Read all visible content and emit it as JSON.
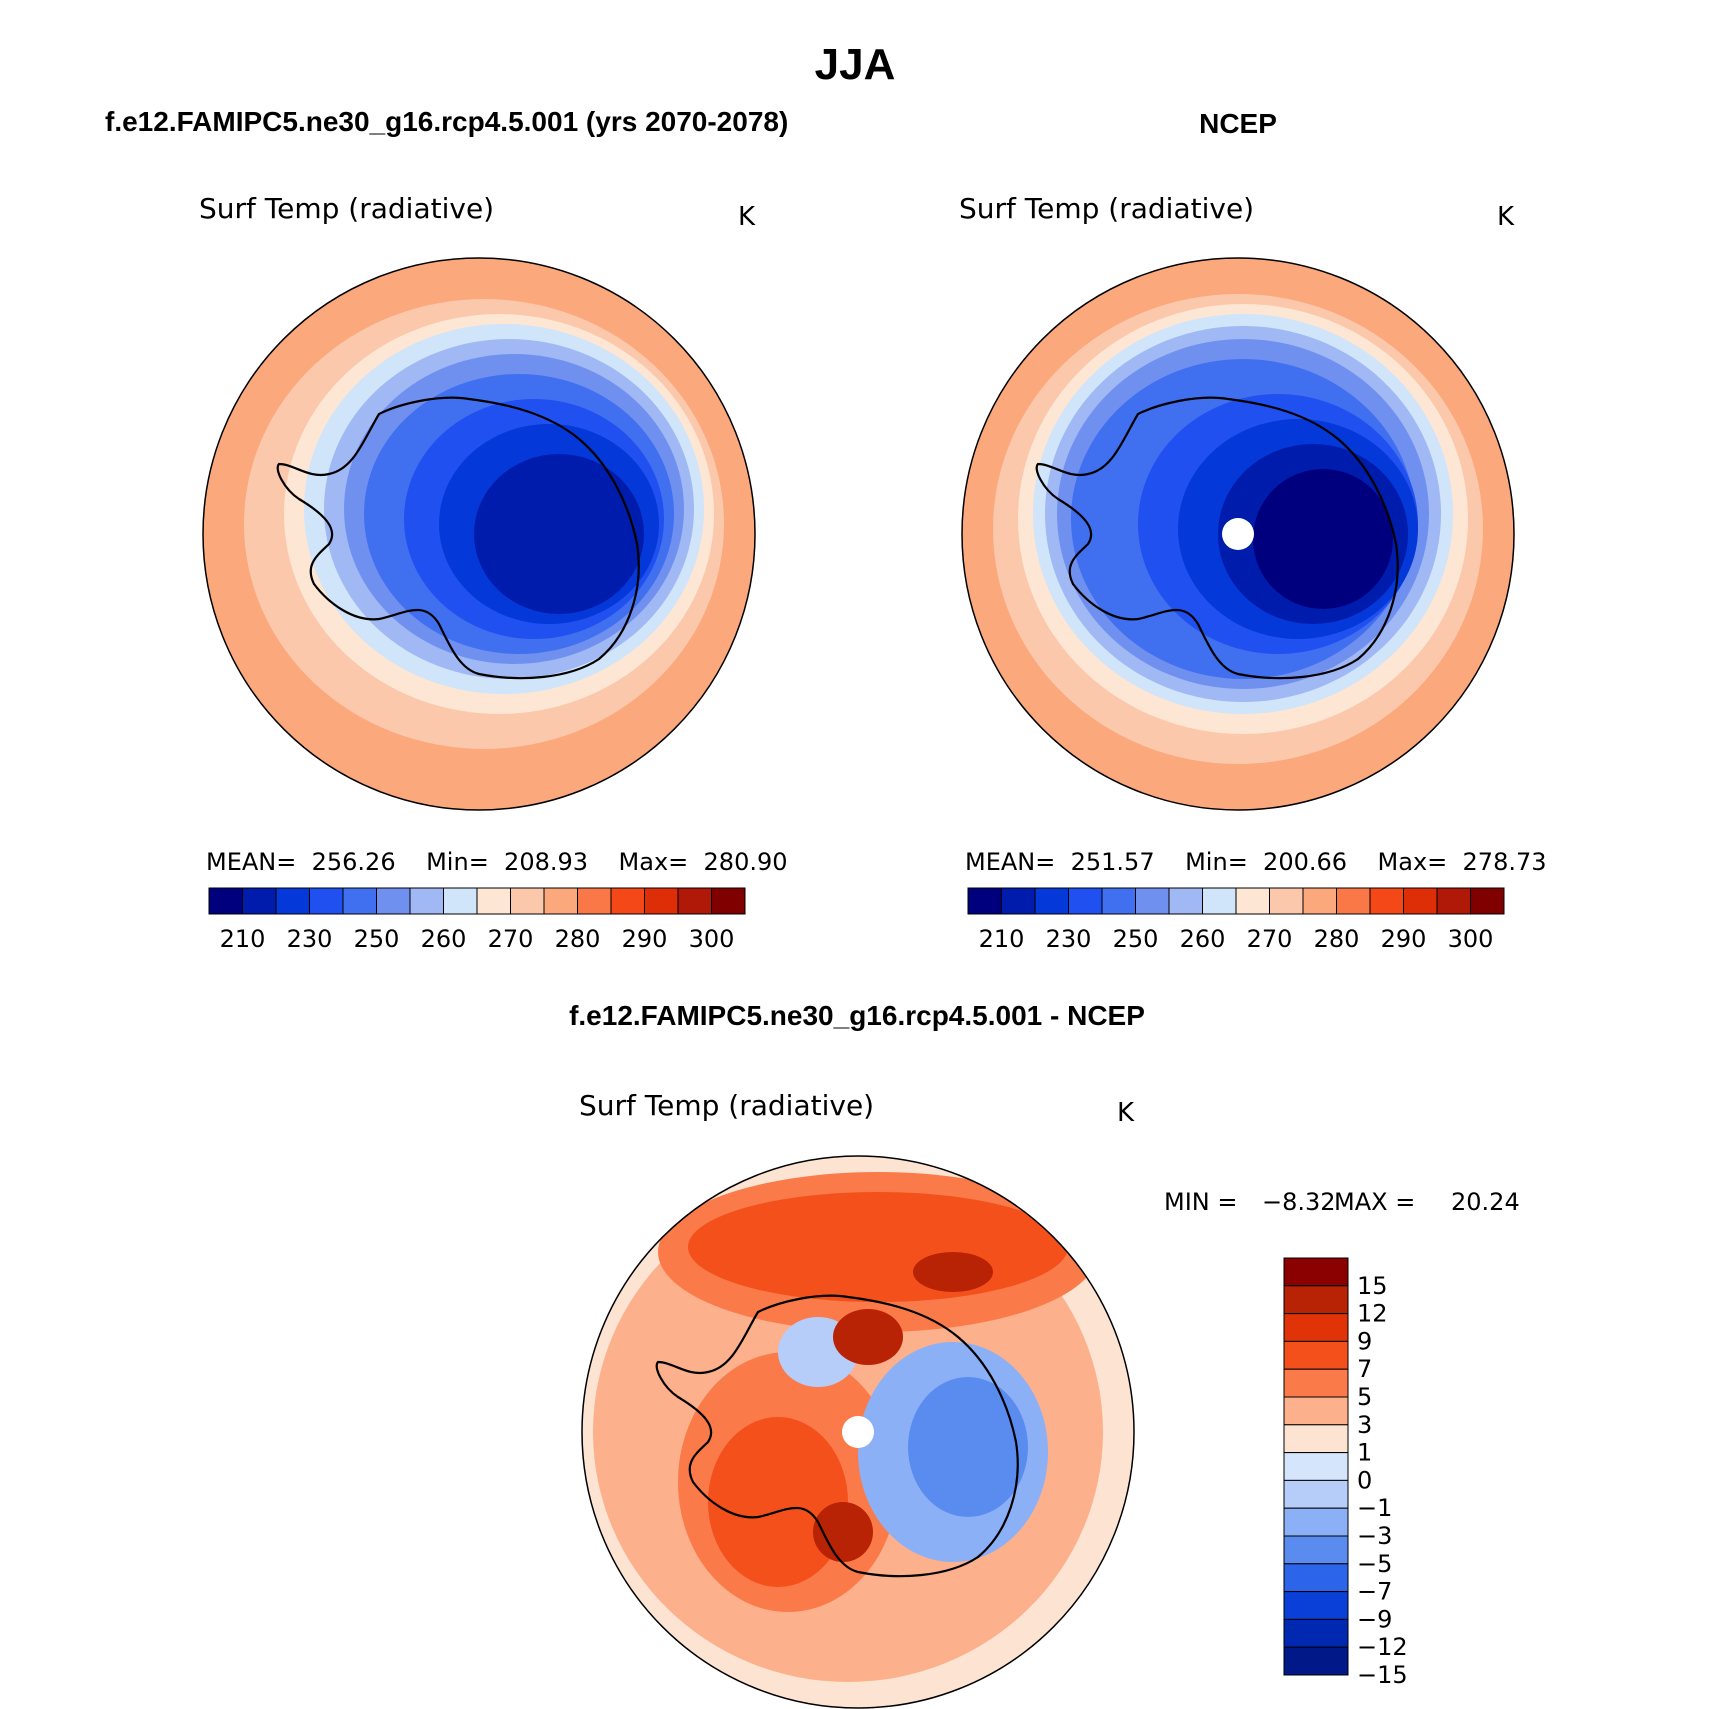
{
  "page": {
    "title": "JJA"
  },
  "scale_values": {
    "abs": [
      210,
      230,
      250,
      260,
      270,
      280,
      290,
      300
    ],
    "abs_colors": [
      "#00007f",
      "#001cac",
      "#0538d8",
      "#2050f0",
      "#4070f0",
      "#7090f0",
      "#a0b8f4",
      "#d0e4fa",
      "#fde6d4",
      "#fcc8ac",
      "#fba87c",
      "#fa7848",
      "#f44818",
      "#de2e08",
      "#b01808",
      "#800000"
    ],
    "diff": [
      "15",
      "12",
      "9",
      "7",
      "5",
      "3",
      "1",
      "0",
      "−1",
      "−3",
      "−5",
      "−7",
      "−9",
      "−12",
      "−15"
    ],
    "diff_colors": [
      "#8b0000",
      "#b82205",
      "#e03308",
      "#f4501b",
      "#fb7a4a",
      "#fcb08c",
      "#fde4d2",
      "#d5e5fb",
      "#b5cdf8",
      "#8cb0f6",
      "#5a8cf0",
      "#2c64ea",
      "#0a40d8",
      "#0028b0",
      "#001888"
    ]
  },
  "panels": {
    "model": {
      "title": "f.e12.FAMIPC5.ne30_g16.rcp4.5.001 (yrs 2070-2078)",
      "var": "Surf Temp (radiative)",
      "units": "K",
      "stats": "MEAN=  256.26    Min=  208.93    Max=  280.90"
    },
    "obs": {
      "title": "NCEP",
      "var": "Surf Temp (radiative)",
      "units": "K",
      "stats": "MEAN=  251.57    Min=  200.66    Max=  278.73"
    },
    "diff": {
      "title": "f.e12.FAMIPC5.ne30_g16.rcp4.5.001 - NCEP",
      "var": "Surf Temp (radiative)",
      "units": "K",
      "min_label": "MIN =",
      "min_value": "−8.32",
      "max_label": "MAX =",
      "max_value": "20.24"
    }
  },
  "legend_abs": {
    "labels": [
      "210",
      "230",
      "250",
      "260",
      "270",
      "280",
      "290",
      "300"
    ]
  }
}
